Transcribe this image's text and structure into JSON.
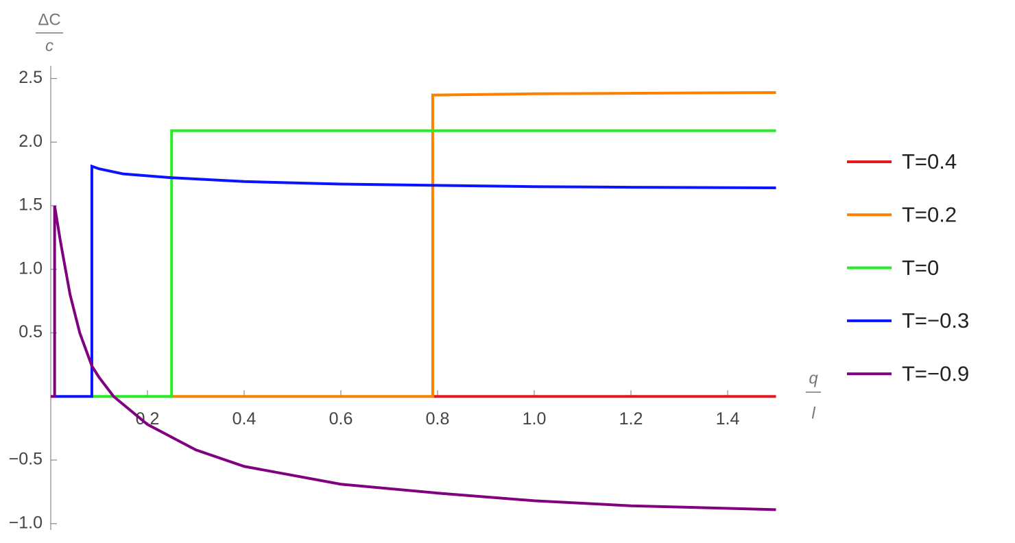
{
  "chart_data": {
    "type": "line",
    "y_label_numerator": "ΔC",
    "y_label_denominator": "c",
    "x_label_numerator": "q",
    "x_label_denominator": "l",
    "xlim": [
      0,
      1.5
    ],
    "ylim": [
      -1.05,
      2.6
    ],
    "xticks": [
      0.2,
      0.4,
      0.6,
      0.8,
      {
        "value": 1,
        "label": "1.0"
      },
      1.2,
      1.4
    ],
    "yticks": [
      {
        "value": -1,
        "label": "−1.0"
      },
      {
        "value": -0.5,
        "label": "−0.5"
      },
      0.5,
      {
        "value": 1,
        "label": "1.0"
      },
      1.5,
      {
        "value": 2,
        "label": "2.0"
      },
      2.5
    ],
    "series": [
      {
        "name": "T=0.4",
        "color": "#e8171e",
        "x": [
          0.79,
          1.5
        ],
        "values": [
          0,
          0
        ]
      },
      {
        "name": "T=0.2",
        "color": "#ff8000",
        "x": [
          0.25,
          0.79,
          0.79,
          1.0,
          1.5
        ],
        "values": [
          0,
          0,
          2.37,
          2.38,
          2.39
        ]
      },
      {
        "name": "T=0",
        "color": "#22ee22",
        "x": [
          0.085,
          0.25,
          0.25,
          1.5
        ],
        "values": [
          0,
          0,
          2.09,
          2.09
        ]
      },
      {
        "name": "T=−0.3",
        "color": "#0a14ff",
        "x": [
          0.008,
          0.085,
          0.085,
          0.1,
          0.15,
          0.25,
          0.4,
          0.6,
          0.8,
          1.0,
          1.2,
          1.5
        ],
        "values": [
          0,
          0,
          1.81,
          1.79,
          1.75,
          1.72,
          1.69,
          1.67,
          1.66,
          1.65,
          1.645,
          1.64
        ]
      },
      {
        "name": "T=−0.9",
        "color": "#800080",
        "x": [
          0,
          0.008,
          0.008,
          0.02,
          0.04,
          0.06,
          0.085,
          0.1,
          0.13,
          0.2,
          0.3,
          0.4,
          0.6,
          0.8,
          1.0,
          1.2,
          1.5
        ],
        "values": [
          0,
          0,
          1.5,
          1.22,
          0.8,
          0.5,
          0.24,
          0.15,
          0,
          -0.22,
          -0.42,
          -0.55,
          -0.69,
          -0.76,
          -0.82,
          -0.86,
          -0.89
        ]
      }
    ]
  }
}
